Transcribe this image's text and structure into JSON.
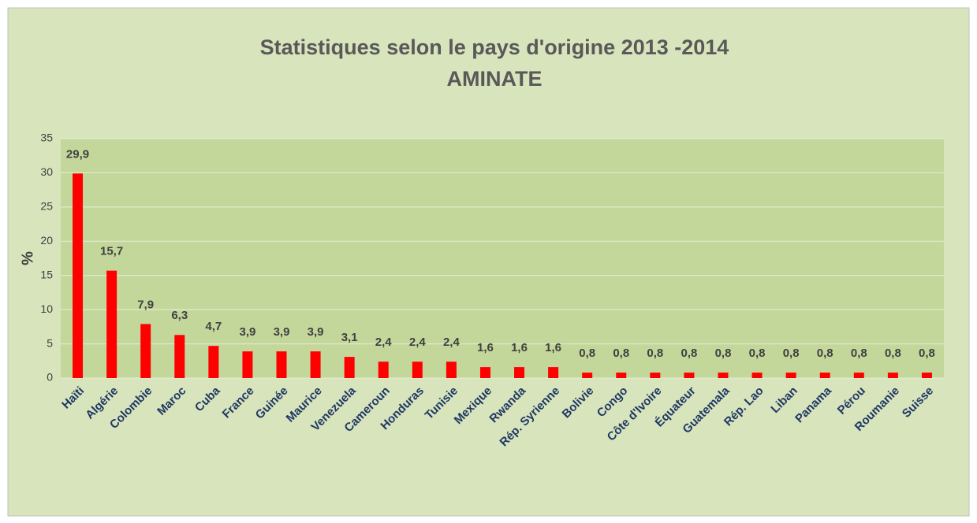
{
  "chart_data": {
    "type": "bar",
    "title": "Statistiques selon le pays d'origine 2013 -2014",
    "subtitle": "AMINATE",
    "y_label": "%",
    "categories": [
      "Haïti",
      "Algérie",
      "Colombie",
      "Maroc",
      "Cuba",
      "France",
      "Guinée",
      "Maurice",
      "Venezuela",
      "Cameroun",
      "Honduras",
      "Tunisie",
      "Mexique",
      "Rwanda",
      "Rép. Syrienne",
      "Bolivie",
      "Congo",
      "Côte d'Ivoire",
      "Équateur",
      "Guatemala",
      "Rép. Lao",
      "Liban",
      "Panama",
      "Pérou",
      "Roumanie",
      "Suisse"
    ],
    "values": [
      29.9,
      15.7,
      7.9,
      6.3,
      4.7,
      3.9,
      3.9,
      3.9,
      3.1,
      2.4,
      2.4,
      2.4,
      1.6,
      1.6,
      1.6,
      0.8,
      0.8,
      0.8,
      0.8,
      0.8,
      0.8,
      0.8,
      0.8,
      0.8,
      0.8,
      0.8
    ],
    "value_labels": [
      "29,9",
      "15,7",
      "7,9",
      "6,3",
      "4,7",
      "3,9",
      "3,9",
      "3,9",
      "3,1",
      "2,4",
      "2,4",
      "2,4",
      "1,6",
      "1,6",
      "1,6",
      "0,8",
      "0,8",
      "0,8",
      "0,8",
      "0,8",
      "0,8",
      "0,8",
      "0,8",
      "0,8",
      "0,8",
      "0,8"
    ],
    "color": "#ff0000",
    "ylim": [
      0,
      35
    ],
    "yticks": [
      0,
      5,
      10,
      15,
      20,
      25,
      30,
      35
    ],
    "grid": true
  }
}
